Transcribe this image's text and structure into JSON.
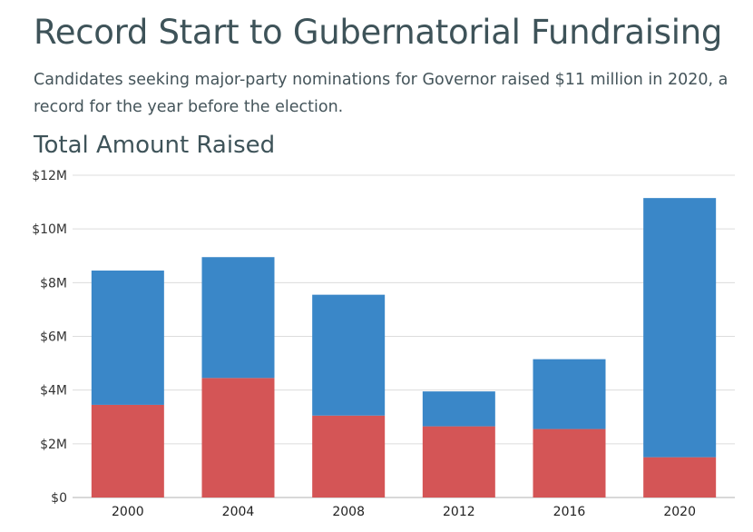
{
  "header": {
    "title": "Record Start to Gubernatorial Fundraising",
    "subtitle": "Candidates seeking major-party nominations for Governor raised $11 million in 2020, a record for the year before the election."
  },
  "chart_data": {
    "type": "bar",
    "stacked": true,
    "title": "Total Amount Raised",
    "xlabel": "",
    "ylabel": "",
    "categories": [
      "2000",
      "2004",
      "2008",
      "2012",
      "2016",
      "2020"
    ],
    "series": [
      {
        "color": "#d45556",
        "values": [
          3.45,
          4.45,
          3.05,
          2.65,
          2.55,
          1.5
        ]
      },
      {
        "color": "#3a87c8",
        "values": [
          5.0,
          4.5,
          4.5,
          1.3,
          2.6,
          9.65
        ]
      }
    ],
    "ylim": [
      0,
      12
    ],
    "yticks": [
      {
        "value": 0,
        "label": "$0"
      },
      {
        "value": 2,
        "label": "$2M"
      },
      {
        "value": 4,
        "label": "$4M"
      },
      {
        "value": 6,
        "label": "$6M"
      },
      {
        "value": 8,
        "label": "$8M"
      },
      {
        "value": 10,
        "label": "$10M"
      },
      {
        "value": 12,
        "label": "$12M"
      }
    ],
    "grid": true,
    "legend": "none"
  }
}
